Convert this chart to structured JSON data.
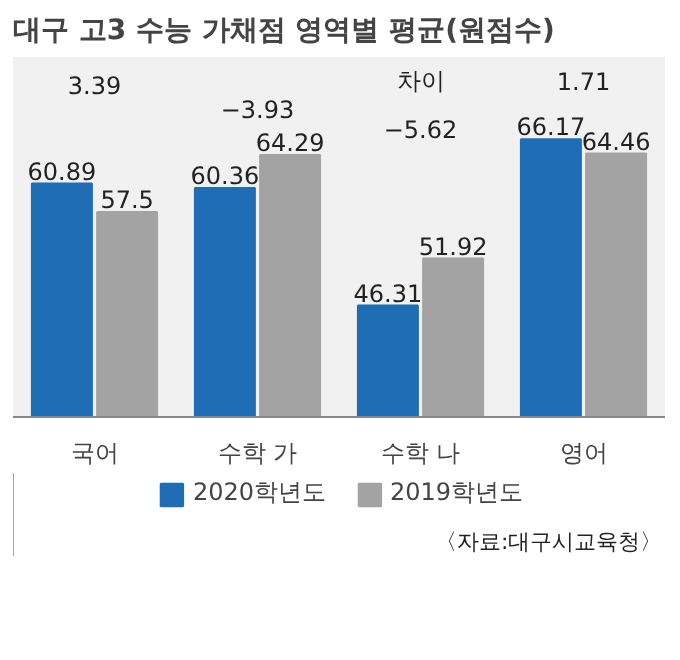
{
  "chart_data": {
    "type": "bar",
    "title": "대구 고3 수능 가채점 영역별 평균(원점수)",
    "categories": [
      "국어",
      "수학 가",
      "수학 나",
      "영어"
    ],
    "series": [
      {
        "name": "2020학년도",
        "color": "#1f6db5",
        "values": [
          60.89,
          60.36,
          46.31,
          66.17
        ]
      },
      {
        "name": "2019학년도",
        "color": "#a3a3a3",
        "values": [
          57.5,
          64.29,
          51.92,
          64.46
        ]
      }
    ],
    "ylim": [
      33,
      76
    ],
    "data_labels": true,
    "legend": "bottom",
    "tick_labels": "x",
    "grid": false,
    "annotations": [
      "3.39",
      "−3.93",
      "차이",
      "−5.62",
      "1.71",
      "〈자료:대구시교육청〉"
    ]
  }
}
